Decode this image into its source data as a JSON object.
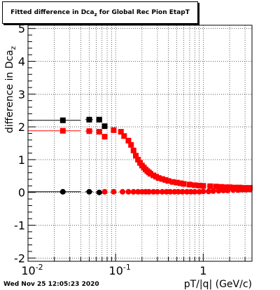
{
  "chart_data": {
    "type": "scatter",
    "title": "Fitted difference in Dca",
    "title_subscript": "z",
    "title_suffix": " for Global Rec Pion EtapT",
    "xlabel": "pT/|q| (GeV/c)",
    "ylabel": "difference in Dca",
    "ylabel_subscript": "z",
    "x_scale": "log",
    "xlim": [
      0.01,
      3.6
    ],
    "ylim": [
      -2.1,
      5.1
    ],
    "grid": true,
    "x_ticks": [
      0.01,
      0.1,
      1
    ],
    "x_tick_labels": [
      "10",
      "10",
      "1"
    ],
    "x_tick_exponents": [
      "-2",
      "-1",
      ""
    ],
    "y_ticks": [
      -2,
      -1,
      0,
      1,
      2,
      3,
      4,
      5
    ],
    "y_tick_labels": [
      "-2",
      "-1",
      "0",
      "1",
      "2",
      "3",
      "4",
      "5"
    ],
    "series": [
      {
        "color": "#000000",
        "marker": "square",
        "x": [
          0.025,
          0.05,
          0.065,
          0.075
        ],
        "y": [
          2.2,
          2.22,
          2.22,
          2.02
        ],
        "xerr": [
          0.015,
          0.005,
          0.005,
          0.005
        ]
      },
      {
        "color": "#ff0000",
        "marker": "square",
        "x": [
          0.025,
          0.05,
          0.065,
          0.075,
          0.095,
          0.115,
          0.125,
          0.14,
          0.15,
          0.16,
          0.17,
          0.18,
          0.19,
          0.2,
          0.21,
          0.22,
          0.23,
          0.24,
          0.25,
          0.27,
          0.29,
          0.31,
          0.34,
          0.37,
          0.4,
          0.45,
          0.5,
          0.55,
          0.6,
          0.7,
          0.8,
          0.9,
          1.0,
          1.2,
          1.4,
          1.6,
          1.8,
          2.0,
          2.3,
          2.6,
          3.0,
          3.4
        ],
        "y": [
          1.88,
          1.87,
          1.85,
          1.7,
          1.9,
          1.85,
          1.72,
          1.58,
          1.45,
          1.28,
          1.12,
          1.0,
          0.9,
          0.82,
          0.76,
          0.7,
          0.65,
          0.61,
          0.57,
          0.52,
          0.48,
          0.44,
          0.41,
          0.38,
          0.35,
          0.32,
          0.3,
          0.28,
          0.26,
          0.24,
          0.22,
          0.21,
          0.2,
          0.19,
          0.18,
          0.17,
          0.16,
          0.16,
          0.15,
          0.15,
          0.14,
          0.14
        ],
        "xerr": [
          0.015,
          0.005,
          0.005,
          0.005,
          0.005,
          0.005,
          0.005,
          0.005,
          0.005,
          0.005,
          0.005,
          0.005,
          0.005,
          0.005,
          0.005,
          0.005,
          0.005,
          0.005,
          0.005,
          0.01,
          0.01,
          0.01,
          0.015,
          0.015,
          0.015,
          0.025,
          0.025,
          0.025,
          0.025,
          0.05,
          0.05,
          0.05,
          0.05,
          0.1,
          0.1,
          0.1,
          0.1,
          0.1,
          0.15,
          0.15,
          0.2,
          0.2
        ]
      },
      {
        "color": "#000000",
        "marker": "circle",
        "x": [
          0.025,
          0.05,
          0.065
        ],
        "y": [
          0.02,
          0.02,
          0.0
        ],
        "xerr": [
          0.015,
          0.005,
          0.005
        ]
      },
      {
        "color": "#ff0000",
        "marker": "circle",
        "x": [
          0.075,
          0.095,
          0.12,
          0.14,
          0.16,
          0.18,
          0.2,
          0.22,
          0.24,
          0.27,
          0.3,
          0.34,
          0.38,
          0.42,
          0.47,
          0.52,
          0.58,
          0.65,
          0.72,
          0.8,
          0.9,
          1.0,
          1.15,
          1.3,
          1.5,
          1.7,
          1.9,
          2.2,
          2.5,
          2.8,
          3.1,
          3.4
        ],
        "y": [
          0.02,
          0.02,
          0.02,
          0.02,
          0.02,
          0.02,
          0.02,
          0.02,
          0.02,
          0.02,
          0.02,
          0.02,
          0.02,
          0.02,
          0.02,
          0.02,
          0.02,
          0.02,
          0.02,
          0.02,
          0.02,
          0.03,
          0.03,
          0.04,
          0.05,
          0.06,
          0.06,
          0.07,
          0.07,
          0.08,
          0.08,
          0.09
        ],
        "xerr": [
          0.005,
          0.005,
          0.01,
          0.01,
          0.01,
          0.01,
          0.01,
          0.01,
          0.01,
          0.015,
          0.015,
          0.02,
          0.02,
          0.02,
          0.025,
          0.025,
          0.03,
          0.035,
          0.035,
          0.04,
          0.05,
          0.05,
          0.075,
          0.075,
          0.1,
          0.1,
          0.1,
          0.15,
          0.15,
          0.15,
          0.15,
          0.2
        ]
      }
    ]
  },
  "timestamp": "Wed Nov 25 12:05:23 2020"
}
